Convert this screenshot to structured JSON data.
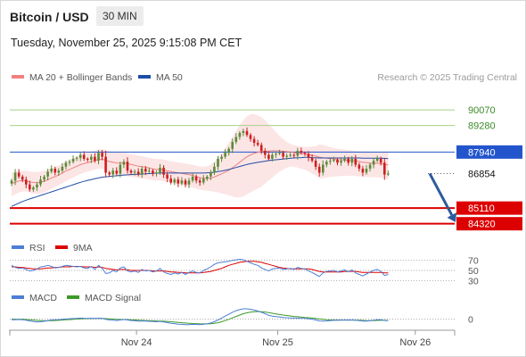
{
  "header": {
    "title": "Bitcoin / USD",
    "interval": "30 MIN",
    "timestamp": "Tuesday, November 25, 2025 9:15:08 PM CET"
  },
  "legend": {
    "ma20_bb": "MA 20 + Bollinger Bands",
    "ma50": "MA 50",
    "credit": "Research © 2025 Trading Central"
  },
  "colors": {
    "up": "#5b8a3a",
    "down": "#cc1e1e",
    "ma20": "#f08080",
    "ma50": "#1f4ea8",
    "bollinger_fill": "#fbe0e0",
    "resistance": "#2255cc",
    "support": "#dd0000",
    "target": "#a8cf8a",
    "rsi": "#4d7ed6",
    "rsi_ma": "#dd0000",
    "macd": "#4d7ed6",
    "macd_signal": "#3c9a28",
    "arrow": "#2e5a9c"
  },
  "chart_data": [
    {
      "type": "candlestick",
      "panel": "price",
      "series_names": [
        "MA 20 + Bollinger Bands",
        "MA 50"
      ],
      "ylim": [
        83900,
        91200
      ],
      "levels": [
        {
          "value": 90070,
          "label": "90070",
          "kind": "target"
        },
        {
          "value": 89280,
          "label": "89280",
          "kind": "target"
        },
        {
          "value": 87940,
          "label": "87940",
          "kind": "resistance"
        },
        {
          "value": 86854,
          "label": "86854",
          "kind": "last"
        },
        {
          "value": 85110,
          "label": "85110",
          "kind": "support"
        },
        {
          "value": 84320,
          "label": "84320",
          "kind": "support"
        }
      ],
      "forecast_arrow": {
        "from": 86854,
        "to": 84400
      },
      "closes": [
        86500,
        86900,
        86700,
        86550,
        86300,
        86050,
        86150,
        86300,
        86550,
        86700,
        86950,
        87100,
        86900,
        87000,
        87200,
        87400,
        87450,
        87600,
        87650,
        87800,
        87600,
        87550,
        87700,
        87500,
        87900,
        87700,
        86900,
        86800,
        87000,
        86850,
        87300,
        87450,
        87000,
        86900,
        86950,
        86800,
        87100,
        86950,
        87000,
        86850,
        86900,
        87150,
        86800,
        86600,
        86400,
        86550,
        86350,
        86500,
        86300,
        86500,
        86700,
        86500,
        86400,
        86600,
        86700,
        86900,
        87200,
        87600,
        87700,
        87900,
        88100,
        88450,
        88700,
        88900,
        89000,
        88800,
        88600,
        88400,
        88300,
        88000,
        87800,
        87600,
        87800,
        87850,
        87900,
        87700,
        87750,
        87800,
        87750,
        88000,
        87900,
        87850,
        87650,
        87500,
        87200,
        86900,
        87300,
        87450,
        87500,
        87550,
        87400,
        87500,
        87600,
        87400,
        87600,
        87300,
        87100,
        86900,
        87100,
        87300,
        87500,
        87600,
        87400,
        86800,
        86854
      ],
      "ma20": [
        86350,
        86420,
        86480,
        86500,
        86480,
        86430,
        86400,
        86390,
        86420,
        86470,
        86540,
        86630,
        86700,
        86780,
        86880,
        86980,
        87060,
        87140,
        87220,
        87300,
        87360,
        87400,
        87460,
        87500,
        87560,
        87580,
        87520,
        87460,
        87430,
        87390,
        87380,
        87380,
        87350,
        87310,
        87270,
        87220,
        87200,
        87170,
        87130,
        87090,
        87060,
        87060,
        87030,
        86990,
        86950,
        86920,
        86890,
        86860,
        86830,
        86800,
        86760,
        86700,
        86650,
        86620,
        86600,
        86620,
        86680,
        86760,
        86840,
        86930,
        87020,
        87140,
        87280,
        87430,
        87570,
        87700,
        87800,
        87870,
        87930,
        87970,
        87990,
        87990,
        88000,
        88000,
        88000,
        87980,
        87960,
        87940,
        87910,
        87880,
        87860,
        87840,
        87810,
        87780,
        87740,
        87680,
        87650,
        87630,
        87610,
        87590,
        87560,
        87550,
        87540,
        87520,
        87510,
        87490,
        87460,
        87430,
        87400,
        87380,
        87370,
        87370,
        87360,
        87320,
        87290
      ],
      "bb_upper": [
        86900,
        86950,
        86980,
        87000,
        86990,
        86960,
        86940,
        86930,
        86950,
        86990,
        87050,
        87130,
        87190,
        87260,
        87350,
        87450,
        87540,
        87630,
        87720,
        87810,
        87870,
        87910,
        87970,
        88010,
        88070,
        88090,
        88040,
        87990,
        87960,
        87920,
        87910,
        87910,
        87880,
        87840,
        87800,
        87750,
        87730,
        87700,
        87660,
        87620,
        87590,
        87590,
        87560,
        87520,
        87480,
        87450,
        87420,
        87390,
        87360,
        87330,
        87300,
        87250,
        87210,
        87200,
        87220,
        87300,
        87450,
        87650,
        87900,
        88150,
        88400,
        88700,
        89000,
        89300,
        89550,
        89750,
        89850,
        89850,
        89800,
        89700,
        89550,
        89350,
        89150,
        88950,
        88750,
        88600,
        88450,
        88350,
        88280,
        88250,
        88220,
        88200,
        88200,
        88220,
        88250,
        88320,
        88300,
        88250,
        88200,
        88150,
        88100,
        88080,
        88060,
        88030,
        88010,
        87990,
        87980,
        87980,
        87970,
        87950,
        87940,
        87930,
        87920,
        87950,
        87980
      ],
      "bb_lower": [
        85700,
        85800,
        85900,
        85950,
        85950,
        85900,
        85850,
        85830,
        85850,
        85900,
        85980,
        86080,
        86160,
        86250,
        86360,
        86470,
        86560,
        86650,
        86740,
        86830,
        86900,
        86950,
        87010,
        87050,
        87100,
        87100,
        86950,
        86850,
        86800,
        86760,
        86750,
        86750,
        86720,
        86690,
        86660,
        86620,
        86600,
        86580,
        86550,
        86520,
        86500,
        86500,
        86470,
        86430,
        86390,
        86350,
        86310,
        86270,
        86230,
        86190,
        86150,
        86090,
        86040,
        86010,
        85980,
        85960,
        85940,
        85900,
        85850,
        85800,
        85750,
        85700,
        85650,
        85650,
        85700,
        85800,
        85900,
        86000,
        86100,
        86200,
        86350,
        86500,
        86650,
        86800,
        86950,
        87050,
        87150,
        87200,
        87200,
        87150,
        87100,
        87050,
        86950,
        86850,
        86750,
        86600,
        86620,
        86650,
        86680,
        86700,
        86720,
        86730,
        86740,
        86740,
        86740,
        86730,
        86710,
        86690,
        86680,
        86670,
        86660,
        86660,
        86650,
        86600,
        86550
      ],
      "ma50": [
        85200,
        85280,
        85360,
        85440,
        85510,
        85570,
        85630,
        85690,
        85750,
        85810,
        85870,
        85930,
        85990,
        86050,
        86110,
        86170,
        86230,
        86290,
        86350,
        86410,
        86460,
        86510,
        86550,
        86590,
        86630,
        86670,
        86690,
        86710,
        86730,
        86740,
        86760,
        86780,
        86790,
        86800,
        86810,
        86820,
        86830,
        86840,
        86850,
        86860,
        86870,
        86880,
        86880,
        86880,
        86880,
        86880,
        86880,
        86880,
        86880,
        86880,
        86880,
        86880,
        86880,
        86880,
        86890,
        86900,
        86920,
        86950,
        86980,
        87020,
        87060,
        87110,
        87160,
        87210,
        87260,
        87310,
        87350,
        87390,
        87420,
        87450,
        87480,
        87510,
        87530,
        87550,
        87570,
        87590,
        87610,
        87630,
        87640,
        87650,
        87660,
        87670,
        87670,
        87660,
        87650,
        87640,
        87640,
        87640,
        87640,
        87640,
        87640,
        87640,
        87640,
        87640,
        87640,
        87640,
        87640,
        87630,
        87630,
        87630,
        87630,
        87630,
        87630,
        87620,
        87610
      ]
    },
    {
      "type": "line",
      "panel": "rsi",
      "series_names": [
        "RSI",
        "9MA"
      ],
      "levels": [
        70,
        50,
        30
      ],
      "ylim": [
        20,
        80
      ],
      "rsi": [
        60,
        56,
        54,
        55,
        52,
        49,
        50,
        53,
        57,
        58,
        60,
        58,
        55,
        56,
        58,
        60,
        59,
        58,
        57,
        58,
        55,
        54,
        58,
        52,
        60,
        54,
        44,
        45,
        50,
        47,
        55,
        57,
        49,
        47,
        49,
        46,
        52,
        49,
        50,
        47,
        49,
        54,
        47,
        44,
        42,
        45,
        43,
        46,
        42,
        46,
        49,
        46,
        45,
        50,
        53,
        57,
        62,
        65,
        66,
        67,
        68,
        70,
        71,
        72,
        71,
        68,
        65,
        62,
        60,
        55,
        52,
        49,
        53,
        54,
        55,
        52,
        53,
        54,
        52,
        56,
        54,
        53,
        49,
        46,
        42,
        38,
        45,
        48,
        49,
        50,
        47,
        49,
        51,
        47,
        51,
        45,
        42,
        39,
        43,
        47,
        50,
        52,
        48,
        40,
        42
      ],
      "ma9": [
        57,
        57,
        56,
        56,
        55,
        54,
        53,
        53,
        53,
        54,
        55,
        55,
        56,
        56,
        57,
        57,
        57,
        58,
        58,
        58,
        57,
        57,
        57,
        56,
        57,
        56,
        54,
        53,
        52,
        51,
        52,
        52,
        51,
        50,
        50,
        50,
        50,
        50,
        50,
        49,
        49,
        49,
        49,
        48,
        47,
        47,
        46,
        46,
        45,
        45,
        45,
        45,
        45,
        46,
        47,
        48,
        50,
        52,
        54,
        57,
        60,
        62,
        64,
        66,
        67,
        68,
        68,
        68,
        67,
        66,
        64,
        62,
        60,
        58,
        56,
        55,
        54,
        53,
        53,
        53,
        53,
        53,
        53,
        52,
        50,
        48,
        47,
        47,
        47,
        47,
        47,
        47,
        48,
        48,
        48,
        48,
        47,
        46,
        46,
        46,
        46,
        46,
        46,
        45,
        45
      ]
    },
    {
      "type": "line",
      "panel": "macd",
      "series_names": [
        "MACD",
        "MACD Signal"
      ],
      "levels": [
        0
      ],
      "ylim": [
        -700,
        750
      ],
      "macd": [
        -50,
        -40,
        -30,
        -40,
        -70,
        -120,
        -160,
        -180,
        -170,
        -140,
        -100,
        -60,
        -50,
        -40,
        -20,
        0,
        20,
        30,
        40,
        60,
        50,
        40,
        50,
        30,
        50,
        40,
        -20,
        -60,
        -70,
        -90,
        -60,
        -30,
        -60,
        -90,
        -110,
        -130,
        -120,
        -130,
        -140,
        -160,
        -170,
        -150,
        -180,
        -220,
        -270,
        -290,
        -320,
        -330,
        -350,
        -350,
        -330,
        -340,
        -350,
        -330,
        -300,
        -250,
        -170,
        -60,
        60,
        180,
        300,
        420,
        520,
        590,
        640,
        640,
        610,
        560,
        500,
        420,
        330,
        230,
        180,
        150,
        130,
        100,
        80,
        70,
        60,
        60,
        50,
        40,
        20,
        -10,
        -60,
        -120,
        -130,
        -120,
        -100,
        -80,
        -80,
        -70,
        -60,
        -70,
        -60,
        -80,
        -100,
        -130,
        -130,
        -110,
        -80,
        -50,
        -50,
        -90,
        -100
      ],
      "signal": [
        -10,
        -15,
        -18,
        -22,
        -30,
        -45,
        -65,
        -85,
        -100,
        -110,
        -110,
        -100,
        -90,
        -80,
        -65,
        -50,
        -35,
        -20,
        -5,
        10,
        20,
        25,
        30,
        30,
        35,
        35,
        25,
        10,
        -5,
        -20,
        -30,
        -30,
        -35,
        -45,
        -55,
        -70,
        -80,
        -90,
        -100,
        -110,
        -120,
        -125,
        -135,
        -150,
        -170,
        -190,
        -210,
        -230,
        -250,
        -270,
        -280,
        -290,
        -300,
        -305,
        -305,
        -295,
        -270,
        -230,
        -170,
        -100,
        -20,
        70,
        160,
        250,
        330,
        390,
        430,
        460,
        470,
        460,
        440,
        400,
        360,
        320,
        280,
        250,
        220,
        190,
        160,
        140,
        120,
        100,
        80,
        60,
        35,
        5,
        -20,
        -40,
        -55,
        -60,
        -65,
        -65,
        -65,
        -65,
        -65,
        -70,
        -75,
        -85,
        -95,
        -100,
        -95,
        -85,
        -80,
        -80,
        -85
      ]
    }
  ],
  "x_axis": {
    "ticks": [
      "Nov 24",
      "Nov 25",
      "Nov 26"
    ],
    "tick_index": [
      35,
      74,
      112
    ],
    "n_slots": 115
  }
}
